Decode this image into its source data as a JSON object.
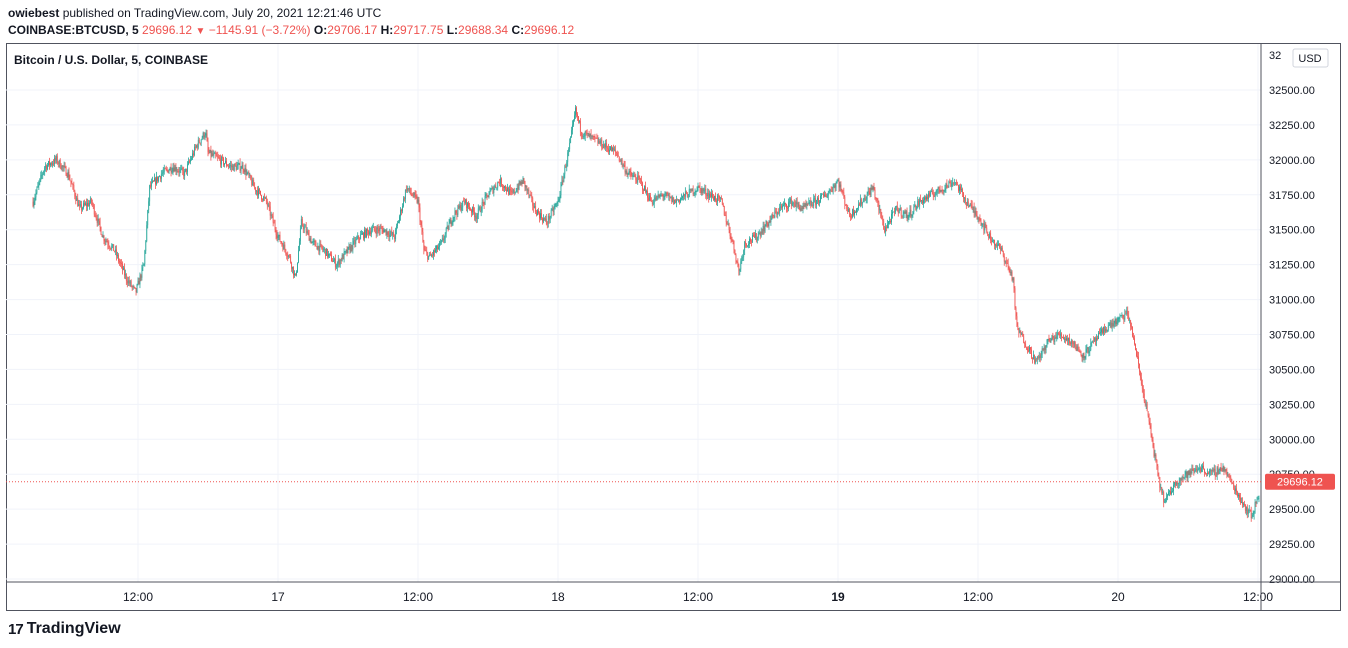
{
  "header": {
    "author": "owiebest",
    "published_text": "published on TradingView.com, July 20, 2021 12:21:46 UTC",
    "symbol": "COINBASE:BTCUSD, 5",
    "last": "29696.12",
    "change": "−1145.91 (−3.72%)",
    "o_label": "O:",
    "o_value": "29706.17",
    "h_label": "H:",
    "h_value": "29717.75",
    "l_label": "L:",
    "l_value": "29688.34",
    "c_label": "C:",
    "c_value": "29696.12"
  },
  "footer": {
    "brand": "TradingView"
  },
  "colors": {
    "up": "#26a69a",
    "down": "#ef5350",
    "grid": "#f0f3fa",
    "axis_text": "#131722"
  },
  "chart_data": {
    "type": "candlestick",
    "title": "Bitcoin / U.S. Dollar, 5, COINBASE",
    "currency": "USD",
    "ylim": [
      28950,
      32650
    ],
    "y_ticks": [
      29000,
      29250,
      29500,
      29750,
      30000,
      30250,
      30500,
      30750,
      31000,
      31250,
      31500,
      31750,
      32000,
      32250,
      32500
    ],
    "y_tick_labels": [
      "29000.00",
      "29250.00",
      "29500.00",
      "29750.00",
      "30000.00",
      "30250.00",
      "30500.00",
      "30750.00",
      "31000.00",
      "31250.00",
      "31500.00",
      "31750.00",
      "32000.00",
      "32250.00",
      "32500.00"
    ],
    "top_partial_tick": {
      "value": 32750,
      "label": "32"
    },
    "x_range_hours": [
      0,
      90
    ],
    "x_ticks": [
      {
        "t": 9,
        "label": "12:00",
        "bold": false
      },
      {
        "t": 21,
        "label": "17",
        "bold": false
      },
      {
        "t": 33,
        "label": "12:00",
        "bold": false
      },
      {
        "t": 45,
        "label": "18",
        "bold": false
      },
      {
        "t": 57,
        "label": "12:00",
        "bold": false
      },
      {
        "t": 69,
        "label": "19",
        "bold": true
      },
      {
        "t": 81,
        "label": "12:00",
        "bold": false
      },
      {
        "t": 93,
        "label": "20",
        "bold": false
      },
      {
        "t": 105,
        "label": "12:00",
        "bold": false
      }
    ],
    "last_price": 29696.12,
    "last_price_label": "29696.12",
    "approx_path": [
      [
        0,
        31700
      ],
      [
        1,
        31950
      ],
      [
        2,
        32000
      ],
      [
        3,
        31900
      ],
      [
        4,
        31650
      ],
      [
        5,
        31700
      ],
      [
        6,
        31450
      ],
      [
        7,
        31350
      ],
      [
        8,
        31150
      ],
      [
        8.8,
        31050
      ],
      [
        9.5,
        31250
      ],
      [
        10,
        31800
      ],
      [
        11,
        31900
      ],
      [
        12,
        31950
      ],
      [
        13,
        31900
      ],
      [
        14,
        32100
      ],
      [
        14.8,
        32200
      ],
      [
        15,
        32050
      ],
      [
        16,
        32000
      ],
      [
        17,
        31950
      ],
      [
        18,
        31950
      ],
      [
        19,
        31800
      ],
      [
        20,
        31700
      ],
      [
        21,
        31450
      ],
      [
        22,
        31300
      ],
      [
        22.5,
        31150
      ],
      [
        23,
        31550
      ],
      [
        24,
        31400
      ],
      [
        25,
        31350
      ],
      [
        26,
        31250
      ],
      [
        27,
        31350
      ],
      [
        28,
        31450
      ],
      [
        29,
        31500
      ],
      [
        30,
        31500
      ],
      [
        31,
        31450
      ],
      [
        32,
        31800
      ],
      [
        33,
        31700
      ],
      [
        33.5,
        31350
      ],
      [
        34,
        31300
      ],
      [
        35,
        31400
      ],
      [
        36,
        31600
      ],
      [
        37,
        31700
      ],
      [
        38,
        31600
      ],
      [
        39,
        31750
      ],
      [
        40,
        31850
      ],
      [
        41,
        31750
      ],
      [
        42,
        31850
      ],
      [
        43,
        31650
      ],
      [
        44,
        31550
      ],
      [
        45,
        31700
      ],
      [
        46,
        32100
      ],
      [
        46.5,
        32350
      ],
      [
        47,
        32200
      ],
      [
        48,
        32150
      ],
      [
        49,
        32100
      ],
      [
        50,
        32050
      ],
      [
        51,
        31900
      ],
      [
        52,
        31850
      ],
      [
        53,
        31700
      ],
      [
        54,
        31750
      ],
      [
        55,
        31700
      ],
      [
        56,
        31750
      ],
      [
        57,
        31800
      ],
      [
        58,
        31750
      ],
      [
        59,
        31700
      ],
      [
        60,
        31400
      ],
      [
        60.5,
        31200
      ],
      [
        61,
        31400
      ],
      [
        62,
        31450
      ],
      [
        63,
        31550
      ],
      [
        64,
        31650
      ],
      [
        65,
        31700
      ],
      [
        66,
        31650
      ],
      [
        67,
        31700
      ],
      [
        68,
        31750
      ],
      [
        69,
        31850
      ],
      [
        70,
        31600
      ],
      [
        71,
        31700
      ],
      [
        72,
        31800
      ],
      [
        72.5,
        31650
      ],
      [
        73,
        31500
      ],
      [
        74,
        31650
      ],
      [
        75,
        31600
      ],
      [
        76,
        31700
      ],
      [
        77,
        31750
      ],
      [
        78,
        31800
      ],
      [
        79,
        31850
      ],
      [
        80,
        31700
      ],
      [
        81,
        31600
      ],
      [
        82,
        31450
      ],
      [
        83,
        31350
      ],
      [
        83.5,
        31250
      ],
      [
        84,
        31150
      ],
      [
        84.3,
        30800
      ],
      [
        85,
        30700
      ],
      [
        86,
        30550
      ],
      [
        87,
        30700
      ],
      [
        88,
        30750
      ],
      [
        89,
        30700
      ],
      [
        90,
        30600
      ],
      [
        91,
        30700
      ],
      [
        92,
        30800
      ],
      [
        93,
        30850
      ],
      [
        93.8,
        30900
      ],
      [
        94,
        30850
      ],
      [
        94.5,
        30650
      ],
      [
        95,
        30400
      ],
      [
        95.5,
        30200
      ],
      [
        96,
        29950
      ],
      [
        96.5,
        29700
      ],
      [
        97,
        29550
      ],
      [
        98,
        29700
      ],
      [
        99,
        29750
      ],
      [
        100,
        29800
      ],
      [
        101,
        29750
      ],
      [
        102,
        29800
      ],
      [
        103,
        29650
      ],
      [
        104,
        29500
      ],
      [
        104.5,
        29450
      ],
      [
        105,
        29600
      ],
      [
        106,
        29700
      ],
      [
        106.5,
        29696
      ]
    ]
  }
}
